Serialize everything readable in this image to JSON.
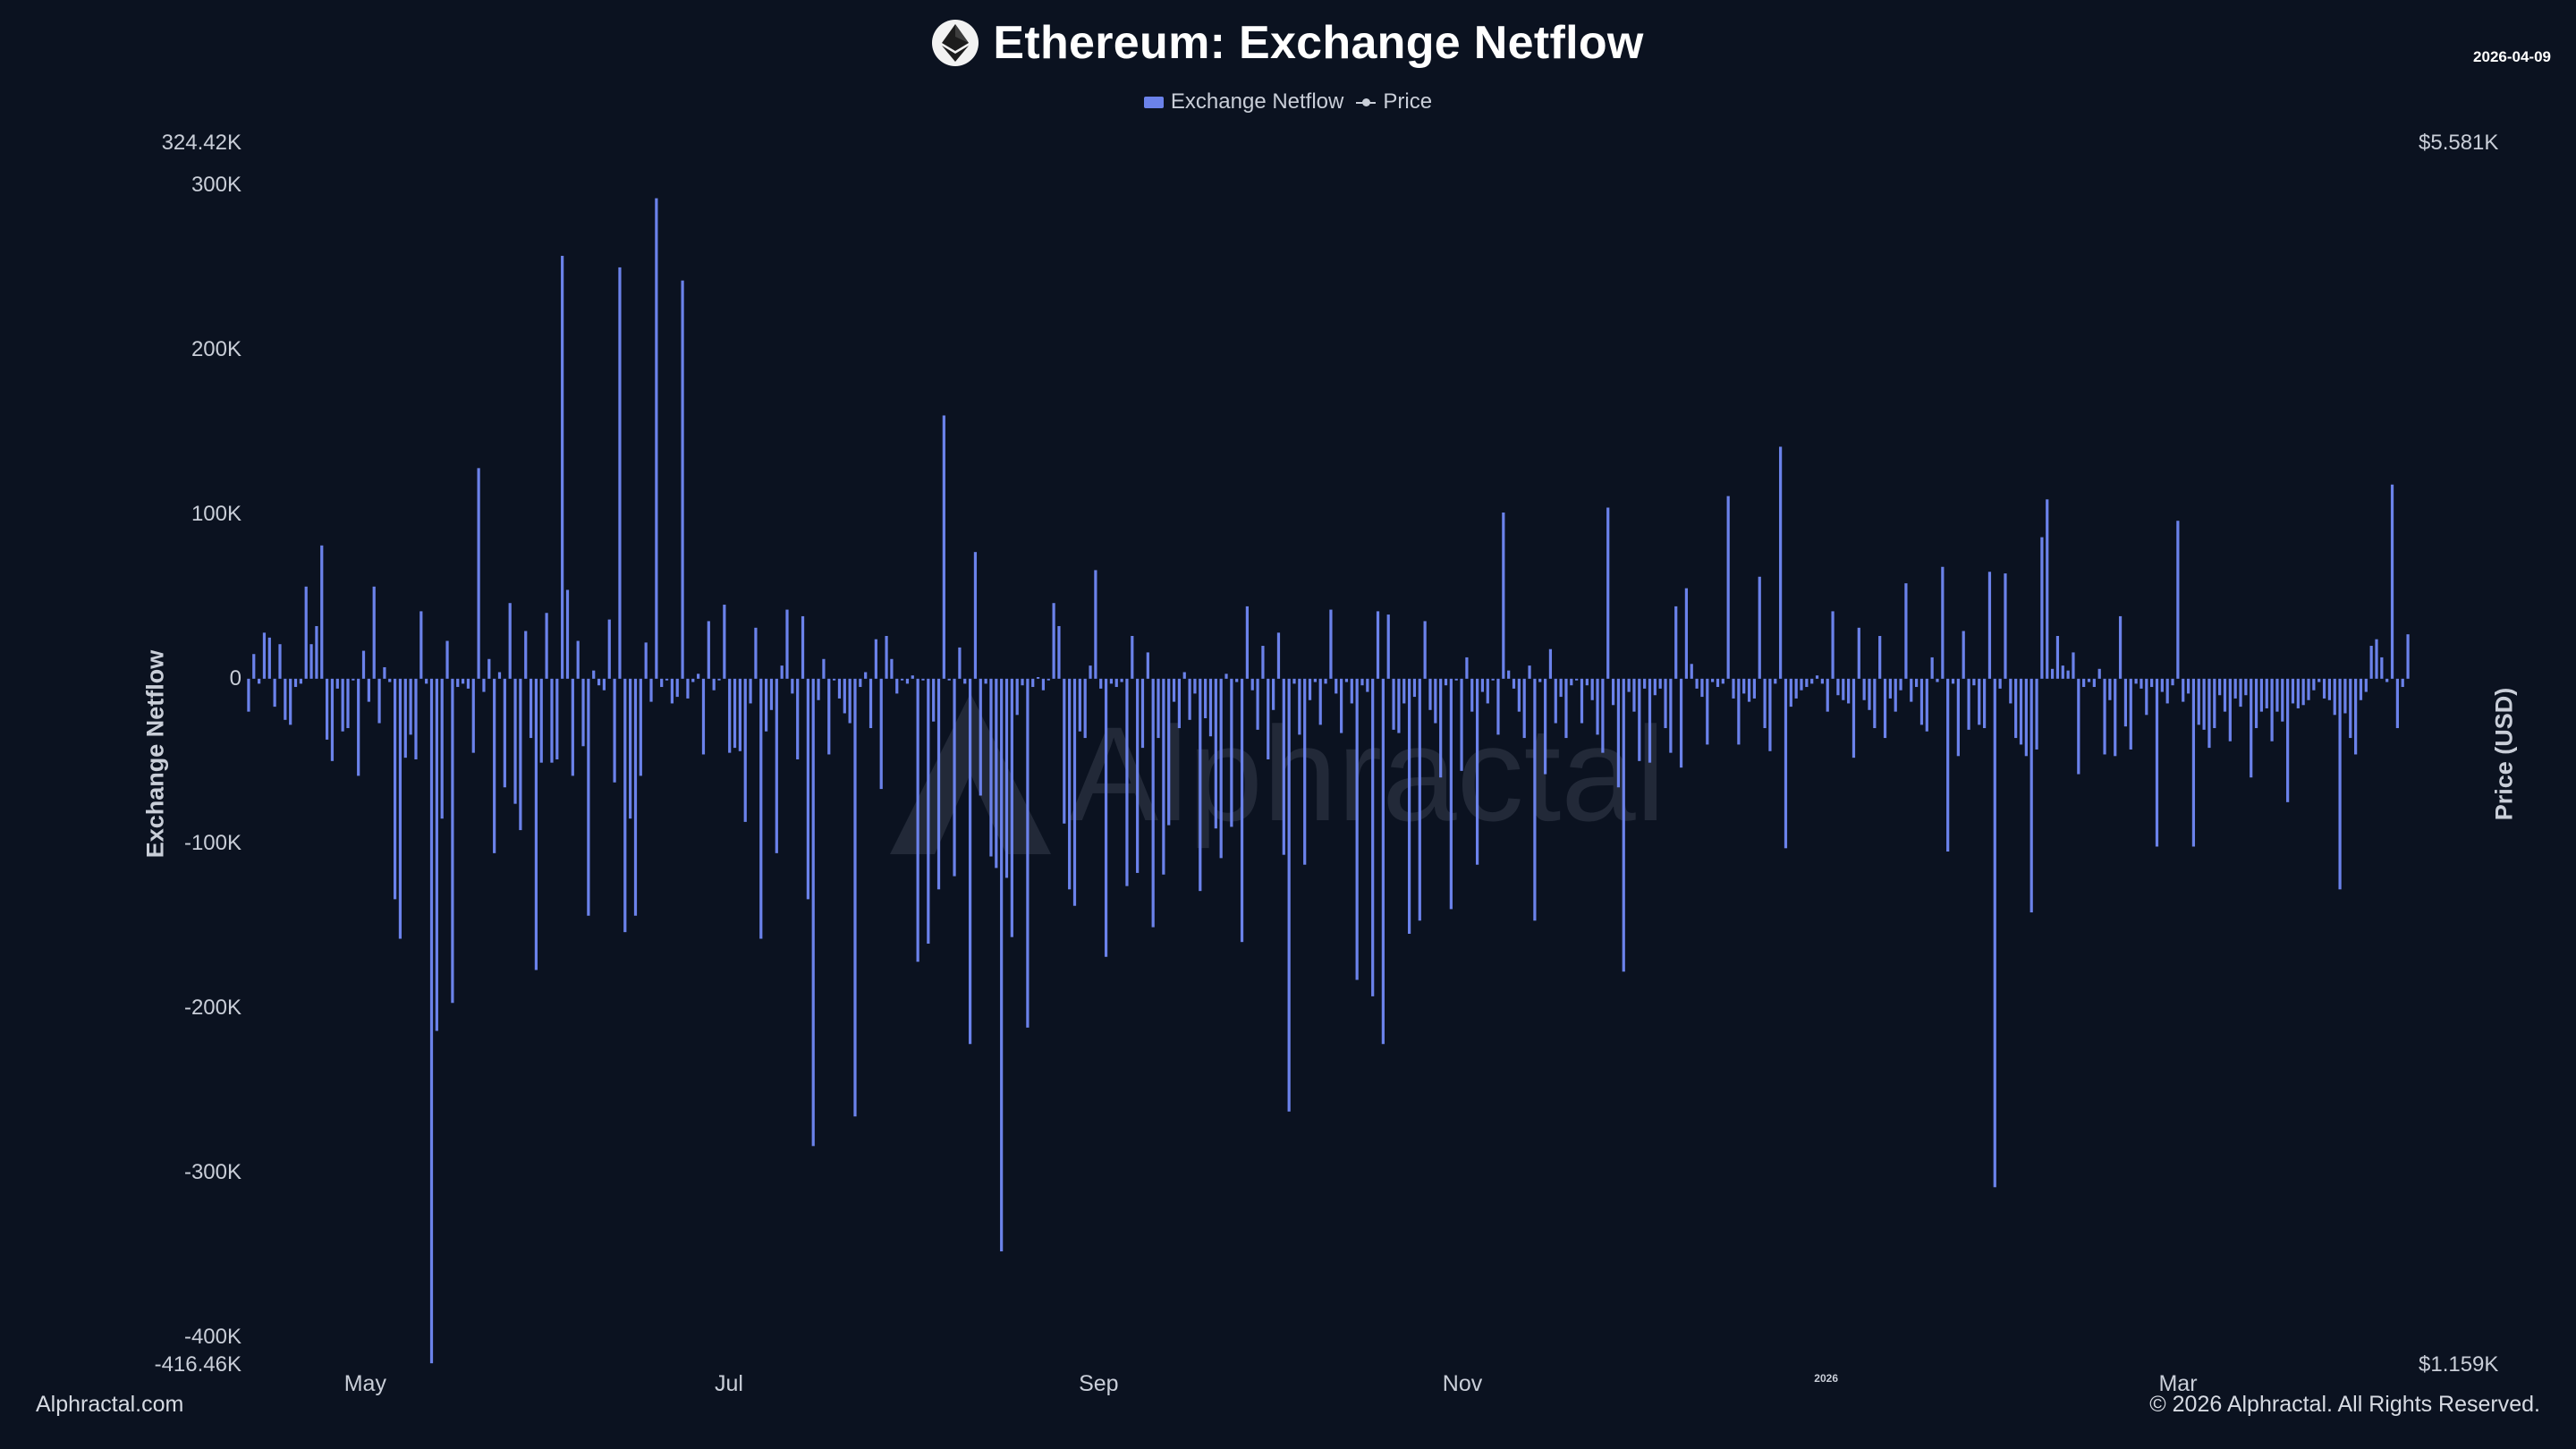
{
  "header": {
    "title": "Ethereum: Exchange Netflow",
    "date": "2026-04-09"
  },
  "legend": {
    "bar_label": "Exchange Netflow",
    "line_label": "Price"
  },
  "axes": {
    "left_label": "Exchange Netflow",
    "right_label": "Price (USD)",
    "left_max_label": "324.42K",
    "left_min_label": "-416.46K",
    "right_max_label": "$5.581K",
    "right_min_label": "$1.159K",
    "left_ticks": [
      "300K",
      "200K",
      "100K",
      "0",
      "-100K",
      "-200K",
      "-300K",
      "-400K"
    ],
    "x_ticks": [
      "May",
      "Jul",
      "Sep",
      "Nov",
      "2026",
      "Mar"
    ]
  },
  "watermark": {
    "text": "Alphractal"
  },
  "footer": {
    "left": "Alphractal.com",
    "right": "© 2026 Alphractal. All Rights Reserved."
  },
  "colors": {
    "background": "#0b1220",
    "bar": "#6b82ea",
    "text": "#c9ced8"
  },
  "chart_data": {
    "type": "bar",
    "series": [
      {
        "name": "Exchange Netflow"
      }
    ],
    "x_start": "2025-04-11",
    "x_end": "2026-04-09",
    "ylim": [
      -416460,
      324420
    ],
    "y2lim": [
      1159,
      5581
    ],
    "grid": false,
    "legend_position": "top-center",
    "values": [
      -20000,
      15000,
      -3000,
      28000,
      25000,
      -17000,
      21000,
      -25000,
      -28000,
      -5000,
      -3000,
      56000,
      21000,
      32000,
      81000,
      -37000,
      -50000,
      -6000,
      -32000,
      -30000,
      -1000,
      -59000,
      17000,
      -14000,
      56000,
      -27000,
      7000,
      -2000,
      -134000,
      -158000,
      -48000,
      -34000,
      -49000,
      41000,
      -3000,
      -416000,
      -214000,
      -85000,
      23000,
      -197000,
      -5000,
      -3000,
      -6000,
      -45000,
      128000,
      -8000,
      12000,
      -106000,
      4000,
      -66000,
      46000,
      -76000,
      -92000,
      29000,
      -36000,
      -177000,
      -51000,
      40000,
      -51000,
      -49000,
      257000,
      54000,
      -59000,
      23000,
      -41000,
      -144000,
      5000,
      -4000,
      -7000,
      36000,
      -63000,
      250000,
      -154000,
      -85000,
      -144000,
      -59000,
      22000,
      -14000,
      292000,
      -5000,
      -1000,
      -15000,
      -11000,
      242000,
      -12000,
      -2000,
      3000,
      -46000,
      35000,
      -7000,
      -1000,
      45000,
      -45000,
      -42000,
      -44000,
      -87000,
      -15000,
      31000,
      -158000,
      -32000,
      -19000,
      -106000,
      8000,
      42000,
      -9000,
      -49000,
      38000,
      -134000,
      -284000,
      -13000,
      12000,
      -46000,
      -1000,
      -12000,
      -21000,
      -27000,
      -266000,
      -5000,
      4000,
      -30000,
      24000,
      -67000,
      26000,
      12000,
      -9000,
      -1000,
      -3000,
      2000,
      -172000,
      -1000,
      -161000,
      -26000,
      -128000,
      160000,
      -1000,
      -120000,
      19000,
      -3000,
      -222000,
      77000,
      -71000,
      -3000,
      -108000,
      -115000,
      -348000,
      -121000,
      -157000,
      -22000,
      -4000,
      -212000,
      -5000,
      1000,
      -7000,
      -1000,
      46000,
      32000,
      -88000,
      -128000,
      -138000,
      -32000,
      -36000,
      8000,
      66000,
      -6000,
      -169000,
      -3000,
      -5000,
      -2000,
      -126000,
      26000,
      -118000,
      -42000,
      16000,
      -151000,
      -36000,
      -119000,
      -89000,
      -14000,
      -30000,
      4000,
      -25000,
      -9000,
      -129000,
      -24000,
      -35000,
      -91000,
      -109000,
      3000,
      -90000,
      -2000,
      -160000,
      44000,
      -7000,
      -31000,
      20000,
      -49000,
      -19000,
      28000,
      -107000,
      -263000,
      -3000,
      -34000,
      -113000,
      -13000,
      -2000,
      -28000,
      -3000,
      42000,
      -9000,
      -33000,
      -2000,
      -15000,
      -183000,
      -4000,
      -8000,
      -193000,
      41000,
      -222000,
      39000,
      -31000,
      -33000,
      -15000,
      -155000,
      -11000,
      -147000,
      35000,
      -19000,
      -27000,
      -60000,
      -4000,
      -140000,
      -1000,
      -56000,
      13000,
      -20000,
      -113000,
      -8000,
      -15000,
      -1000,
      -34000,
      101000,
      5000,
      -6000,
      -20000,
      -36000,
      8000,
      -147000,
      -2000,
      -58000,
      18000,
      -27000,
      -11000,
      -36000,
      -4000,
      -1000,
      -27000,
      -4000,
      -13000,
      -34000,
      -45000,
      104000,
      -16000,
      -66000,
      -178000,
      -8000,
      -20000,
      -50000,
      -6000,
      -51000,
      -10000,
      -6000,
      -30000,
      -45000,
      44000,
      -54000,
      55000,
      9000,
      -6000,
      -11000,
      -40000,
      -2000,
      -5000,
      -3000,
      111000,
      -12000,
      -40000,
      -9000,
      -14000,
      -12000,
      62000,
      -30000,
      -44000,
      -3000,
      141000,
      -103000,
      -17000,
      -12000,
      -7000,
      -5000,
      -3000,
      2000,
      -3000,
      -20000,
      41000,
      -10000,
      -13000,
      -15000,
      -48000,
      31000,
      -13000,
      -19000,
      -30000,
      26000,
      -36000,
      -12000,
      -20000,
      -7000,
      58000,
      -14000,
      -5000,
      -28000,
      -32000,
      13000,
      -2000,
      68000,
      -105000,
      -3000,
      -47000,
      29000,
      -31000,
      -4000,
      -28000,
      -30000,
      65000,
      -309000,
      -6000,
      64000,
      -15000,
      -36000,
      -40000,
      -47000,
      -142000,
      -43000,
      86000,
      109000,
      6000,
      26000,
      8000,
      5000,
      16000,
      -58000,
      -5000,
      -2000,
      -5000,
      6000,
      -46000,
      -13000,
      -47000,
      38000,
      -29000,
      -43000,
      -3000,
      -6000,
      -22000,
      -5000,
      -102000,
      -8000,
      -15000,
      -4000,
      96000,
      -14000,
      -9000,
      -102000,
      -28000,
      -31000,
      -42000,
      -30000,
      -10000,
      -20000,
      -38000,
      -12000,
      -17000,
      -10000,
      -60000,
      -30000,
      -20000,
      -18000,
      -38000,
      -20000,
      -26000,
      -75000,
      -15000,
      -18000,
      -16000,
      -13000,
      -7000,
      -2000,
      -12000,
      -13000,
      -22000,
      -128000,
      -21000,
      -36000,
      -46000,
      -13000,
      -8000,
      20000,
      24000,
      13000,
      -2000,
      118000,
      -30000,
      -5000,
      27000
    ]
  }
}
